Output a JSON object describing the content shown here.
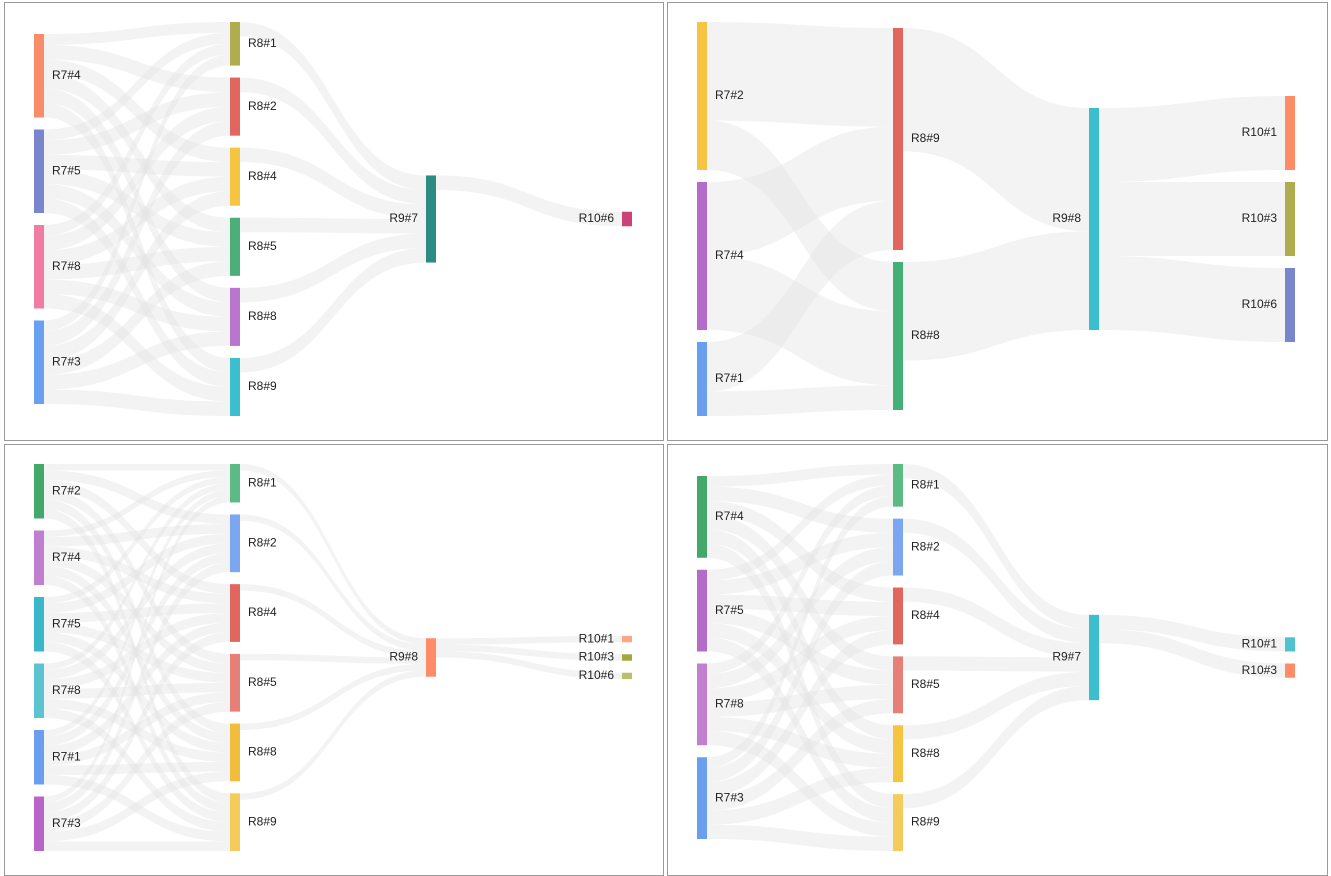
{
  "chart_data": [
    {
      "type": "sankey",
      "nodes": [
        {
          "name": "R7#4",
          "color": "#f98d6a"
        },
        {
          "name": "R7#5",
          "color": "#7986cb"
        },
        {
          "name": "R7#8",
          "color": "#f07ba3"
        },
        {
          "name": "R7#3",
          "color": "#6aa0f0"
        },
        {
          "name": "R8#1",
          "color": "#b0ad4f"
        },
        {
          "name": "R8#2",
          "color": "#e0665e"
        },
        {
          "name": "R8#4",
          "color": "#f5c542"
        },
        {
          "name": "R8#5",
          "color": "#4caf78"
        },
        {
          "name": "R8#8",
          "color": "#b877cc"
        },
        {
          "name": "R8#9",
          "color": "#3bbfcf"
        },
        {
          "name": "R9#7",
          "color": "#2e8b84"
        },
        {
          "name": "R10#6",
          "color": "#c94377"
        }
      ],
      "links": [
        [
          "R7#4",
          "R8#1",
          3
        ],
        [
          "R7#4",
          "R8#2",
          4
        ],
        [
          "R7#4",
          "R8#4",
          4
        ],
        [
          "R7#4",
          "R8#5",
          4
        ],
        [
          "R7#4",
          "R8#8",
          4
        ],
        [
          "R7#4",
          "R8#9",
          4
        ],
        [
          "R7#5",
          "R8#1",
          3
        ],
        [
          "R7#5",
          "R8#2",
          4
        ],
        [
          "R7#5",
          "R8#4",
          4
        ],
        [
          "R7#5",
          "R8#5",
          4
        ],
        [
          "R7#5",
          "R8#8",
          4
        ],
        [
          "R7#5",
          "R8#9",
          4
        ],
        [
          "R7#8",
          "R8#1",
          3
        ],
        [
          "R7#8",
          "R8#2",
          4
        ],
        [
          "R7#8",
          "R8#4",
          4
        ],
        [
          "R7#8",
          "R8#5",
          4
        ],
        [
          "R7#8",
          "R8#8",
          4
        ],
        [
          "R7#8",
          "R8#9",
          4
        ],
        [
          "R7#3",
          "R8#1",
          3
        ],
        [
          "R7#3",
          "R8#2",
          4
        ],
        [
          "R7#3",
          "R8#4",
          4
        ],
        [
          "R7#3",
          "R8#5",
          4
        ],
        [
          "R7#3",
          "R8#8",
          4
        ],
        [
          "R7#3",
          "R8#9",
          4
        ],
        [
          "R8#1",
          "R9#7",
          4
        ],
        [
          "R8#2",
          "R9#7",
          4
        ],
        [
          "R8#4",
          "R9#7",
          4
        ],
        [
          "R8#5",
          "R9#7",
          4
        ],
        [
          "R8#8",
          "R9#7",
          4
        ],
        [
          "R8#9",
          "R9#7",
          4
        ],
        [
          "R9#7",
          "R10#6",
          4
        ]
      ]
    },
    {
      "type": "sankey",
      "nodes": [
        {
          "name": "R7#2",
          "color": "#f5c542"
        },
        {
          "name": "R7#4",
          "color": "#b56cc9"
        },
        {
          "name": "R7#1",
          "color": "#6a9ff0"
        },
        {
          "name": "R8#9",
          "color": "#e0665e"
        },
        {
          "name": "R8#8",
          "color": "#43b078"
        },
        {
          "name": "R9#8",
          "color": "#3bbfcf"
        },
        {
          "name": "R10#1",
          "color": "#fd8c67"
        },
        {
          "name": "R10#3",
          "color": "#b0ad4f"
        },
        {
          "name": "R10#6",
          "color": "#7986cb"
        }
      ],
      "links": [
        [
          "R7#2",
          "R8#9",
          4
        ],
        [
          "R7#2",
          "R8#8",
          2
        ],
        [
          "R7#4",
          "R8#9",
          3
        ],
        [
          "R7#4",
          "R8#8",
          3
        ],
        [
          "R7#1",
          "R8#9",
          2
        ],
        [
          "R7#1",
          "R8#8",
          1
        ],
        [
          "R8#9",
          "R9#8",
          5
        ],
        [
          "R8#8",
          "R9#8",
          4
        ],
        [
          "R9#8",
          "R10#1",
          3
        ],
        [
          "R9#8",
          "R10#3",
          3
        ],
        [
          "R9#8",
          "R10#6",
          3
        ]
      ]
    },
    {
      "type": "sankey",
      "nodes": [
        {
          "name": "R7#2",
          "color": "#43a86a"
        },
        {
          "name": "R7#4",
          "color": "#c17fd0"
        },
        {
          "name": "R7#5",
          "color": "#3ab7c8"
        },
        {
          "name": "R7#8",
          "color": "#5bc4d0"
        },
        {
          "name": "R7#1",
          "color": "#6a9ff0"
        },
        {
          "name": "R7#3",
          "color": "#b864c8"
        },
        {
          "name": "R8#1",
          "color": "#5cba85"
        },
        {
          "name": "R8#2",
          "color": "#7ba7f0"
        },
        {
          "name": "R8#4",
          "color": "#e0665e"
        },
        {
          "name": "R8#5",
          "color": "#e57f78"
        },
        {
          "name": "R8#8",
          "color": "#f0bd3c"
        },
        {
          "name": "R8#9",
          "color": "#f5cc5c"
        },
        {
          "name": "R9#8",
          "color": "#fd8c67"
        },
        {
          "name": "R10#1",
          "color": "#f9a68a"
        },
        {
          "name": "R10#3",
          "color": "#a4a63e"
        },
        {
          "name": "R10#6",
          "color": "#bcbf6c"
        }
      ],
      "links": [
        [
          "R7#2",
          "R8#1",
          2
        ],
        [
          "R7#2",
          "R8#2",
          3
        ],
        [
          "R7#2",
          "R8#4",
          3
        ],
        [
          "R7#2",
          "R8#5",
          3
        ],
        [
          "R7#2",
          "R8#8",
          3
        ],
        [
          "R7#2",
          "R8#9",
          3
        ],
        [
          "R7#4",
          "R8#1",
          2
        ],
        [
          "R7#4",
          "R8#2",
          3
        ],
        [
          "R7#4",
          "R8#4",
          3
        ],
        [
          "R7#4",
          "R8#5",
          3
        ],
        [
          "R7#4",
          "R8#8",
          3
        ],
        [
          "R7#4",
          "R8#9",
          3
        ],
        [
          "R7#5",
          "R8#1",
          2
        ],
        [
          "R7#5",
          "R8#2",
          3
        ],
        [
          "R7#5",
          "R8#4",
          3
        ],
        [
          "R7#5",
          "R8#5",
          3
        ],
        [
          "R7#5",
          "R8#8",
          3
        ],
        [
          "R7#5",
          "R8#9",
          3
        ],
        [
          "R7#8",
          "R8#1",
          2
        ],
        [
          "R7#8",
          "R8#2",
          3
        ],
        [
          "R7#8",
          "R8#4",
          3
        ],
        [
          "R7#8",
          "R8#5",
          3
        ],
        [
          "R7#8",
          "R8#8",
          3
        ],
        [
          "R7#8",
          "R8#9",
          3
        ],
        [
          "R7#1",
          "R8#1",
          2
        ],
        [
          "R7#1",
          "R8#2",
          3
        ],
        [
          "R7#1",
          "R8#4",
          3
        ],
        [
          "R7#1",
          "R8#5",
          3
        ],
        [
          "R7#1",
          "R8#8",
          3
        ],
        [
          "R7#1",
          "R8#9",
          3
        ],
        [
          "R7#3",
          "R8#1",
          2
        ],
        [
          "R7#3",
          "R8#2",
          3
        ],
        [
          "R7#3",
          "R8#4",
          3
        ],
        [
          "R7#3",
          "R8#5",
          3
        ],
        [
          "R7#3",
          "R8#8",
          3
        ],
        [
          "R7#3",
          "R8#9",
          3
        ],
        [
          "R8#1",
          "R9#8",
          2
        ],
        [
          "R8#2",
          "R9#8",
          2
        ],
        [
          "R8#4",
          "R9#8",
          2
        ],
        [
          "R8#5",
          "R9#8",
          2
        ],
        [
          "R8#8",
          "R9#8",
          2
        ],
        [
          "R8#9",
          "R9#8",
          2
        ],
        [
          "R9#8",
          "R10#1",
          2
        ],
        [
          "R9#8",
          "R10#3",
          2
        ],
        [
          "R9#8",
          "R10#6",
          2
        ]
      ]
    },
    {
      "type": "sankey",
      "nodes": [
        {
          "name": "R7#4",
          "color": "#43a86a"
        },
        {
          "name": "R7#5",
          "color": "#b56cc9"
        },
        {
          "name": "R7#8",
          "color": "#c17fd0"
        },
        {
          "name": "R7#3",
          "color": "#6a9ff0"
        },
        {
          "name": "R8#1",
          "color": "#5cba85"
        },
        {
          "name": "R8#2",
          "color": "#7ba7f0"
        },
        {
          "name": "R8#4",
          "color": "#e0665e"
        },
        {
          "name": "R8#5",
          "color": "#e57f78"
        },
        {
          "name": "R8#8",
          "color": "#f5c542"
        },
        {
          "name": "R8#9",
          "color": "#f5cc5c"
        },
        {
          "name": "R9#7",
          "color": "#3bbfcf"
        },
        {
          "name": "R10#1",
          "color": "#4ec3cf"
        },
        {
          "name": "R10#3",
          "color": "#fd8c67"
        }
      ],
      "links": [
        [
          "R7#4",
          "R8#1",
          3
        ],
        [
          "R7#4",
          "R8#2",
          4
        ],
        [
          "R7#4",
          "R8#4",
          4
        ],
        [
          "R7#4",
          "R8#5",
          4
        ],
        [
          "R7#4",
          "R8#8",
          4
        ],
        [
          "R7#4",
          "R8#9",
          4
        ],
        [
          "R7#5",
          "R8#1",
          3
        ],
        [
          "R7#5",
          "R8#2",
          4
        ],
        [
          "R7#5",
          "R8#4",
          4
        ],
        [
          "R7#5",
          "R8#5",
          4
        ],
        [
          "R7#5",
          "R8#8",
          4
        ],
        [
          "R7#5",
          "R8#9",
          4
        ],
        [
          "R7#8",
          "R8#1",
          3
        ],
        [
          "R7#8",
          "R8#2",
          4
        ],
        [
          "R7#8",
          "R8#4",
          4
        ],
        [
          "R7#8",
          "R8#5",
          4
        ],
        [
          "R7#8",
          "R8#8",
          4
        ],
        [
          "R7#8",
          "R8#9",
          4
        ],
        [
          "R7#3",
          "R8#1",
          3
        ],
        [
          "R7#3",
          "R8#2",
          4
        ],
        [
          "R7#3",
          "R8#4",
          4
        ],
        [
          "R7#3",
          "R8#5",
          4
        ],
        [
          "R7#3",
          "R8#8",
          4
        ],
        [
          "R7#3",
          "R8#9",
          4
        ],
        [
          "R8#1",
          "R9#7",
          4
        ],
        [
          "R8#2",
          "R9#7",
          4
        ],
        [
          "R8#4",
          "R9#7",
          4
        ],
        [
          "R8#5",
          "R9#7",
          4
        ],
        [
          "R8#8",
          "R9#7",
          4
        ],
        [
          "R8#9",
          "R9#7",
          4
        ],
        [
          "R9#7",
          "R10#1",
          4
        ],
        [
          "R9#7",
          "R10#3",
          4
        ]
      ]
    }
  ]
}
